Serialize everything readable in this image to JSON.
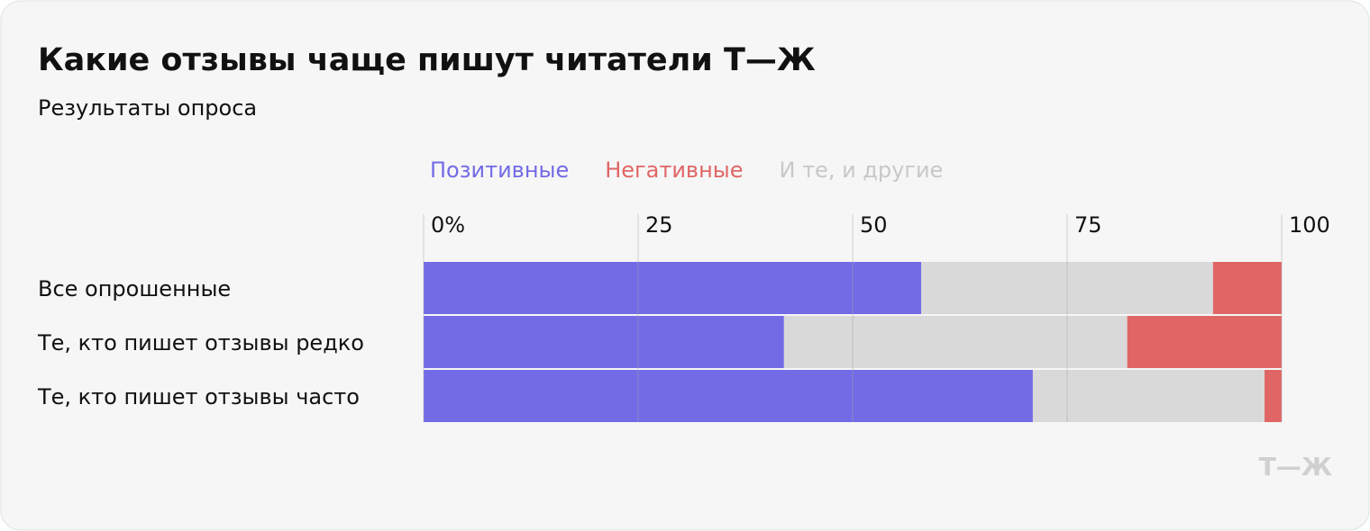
{
  "chart_data": {
    "type": "stacked-bar-horizontal",
    "title": "Какие отзывы чаще пишут читатели Т—Ж",
    "subtitle": "Результаты опроса",
    "categories": [
      "Все опрошенные",
      "Те, кто пишет отзывы редко",
      "Те, кто пишет отзывы часто"
    ],
    "series": [
      {
        "name": "Позитивные",
        "color": "#736be6",
        "values": [
          58,
          42,
          71
        ]
      },
      {
        "name": "Негативные",
        "color": "#e06666",
        "values": [
          8,
          18,
          2
        ]
      },
      {
        "name": "И те, и другие",
        "color": "#d9d9d9",
        "values": [
          34,
          40,
          27
        ]
      }
    ],
    "xlim": [
      0,
      100
    ],
    "xticks": [
      {
        "value": 0,
        "label": "0%"
      },
      25,
      50,
      75,
      100
    ],
    "grid": true,
    "legend": "top",
    "logo": "Т—Ж"
  }
}
